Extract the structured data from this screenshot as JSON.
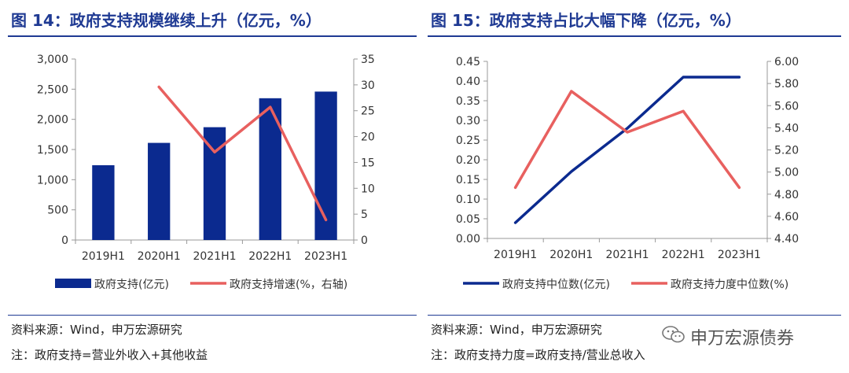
{
  "left": {
    "title": "图 14：政府支持规模继续上升（亿元，%）",
    "source": "资料来源：Wind，申万宏源研究",
    "note": "注：政府支持=营业外收入+其他收益"
  },
  "right": {
    "title": "图 15：政府支持占比大幅下降（亿元，%）",
    "source": "资料来源：Wind，申万宏源研究",
    "note": "注：政府支持力度=政府支持/营业总收入"
  },
  "watermark": {
    "text": "申万宏源债券",
    "icon": "wechat-icon"
  },
  "colors": {
    "navy": "#0b2a8f",
    "red": "#e8605f",
    "title": "#1f3a93",
    "axis": "#999999"
  },
  "chart_data": [
    {
      "type": "bar",
      "categories": [
        "2019H1",
        "2020H1",
        "2021H1",
        "2022H1",
        "2023H1"
      ],
      "series": [
        {
          "name": "政府支持(亿元)",
          "type": "bar",
          "axis": "left",
          "values": [
            1240,
            1610,
            1870,
            2350,
            2460
          ]
        },
        {
          "name": "政府支持增速(%，右轴)",
          "type": "line",
          "axis": "right",
          "values": [
            null,
            29.6,
            17.0,
            25.7,
            3.9
          ]
        }
      ],
      "y_left": {
        "min": 0,
        "max": 3000,
        "step": 500,
        "ticks": [
          "0",
          "500",
          "1,000",
          "1,500",
          "2,000",
          "2,500",
          "3,000"
        ]
      },
      "y_right": {
        "min": 0,
        "max": 35,
        "step": 5,
        "ticks": [
          "0",
          "5",
          "10",
          "15",
          "20",
          "25",
          "30",
          "35"
        ]
      },
      "grid": false,
      "legend": "bottom"
    },
    {
      "type": "line",
      "categories": [
        "2019H1",
        "2020H1",
        "2021H1",
        "2022H1",
        "2023H1"
      ],
      "series": [
        {
          "name": "政府支持中位数(亿元)",
          "axis": "left",
          "values": [
            0.04,
            0.17,
            0.28,
            0.41,
            0.41
          ]
        },
        {
          "name": "政府支持力度中位数(%)",
          "axis": "right",
          "values": [
            4.86,
            5.73,
            5.36,
            5.55,
            4.86
          ]
        }
      ],
      "y_left": {
        "min": 0,
        "max": 0.45,
        "step": 0.05,
        "ticks": [
          "0.00",
          "0.05",
          "0.10",
          "0.15",
          "0.20",
          "0.25",
          "0.30",
          "0.35",
          "0.40",
          "0.45"
        ]
      },
      "y_right": {
        "min": 4.4,
        "max": 6.0,
        "step": 0.2,
        "ticks": [
          "4.40",
          "4.60",
          "4.80",
          "5.00",
          "5.20",
          "5.40",
          "5.60",
          "5.80",
          "6.00"
        ]
      },
      "grid": false,
      "legend": "bottom"
    }
  ]
}
